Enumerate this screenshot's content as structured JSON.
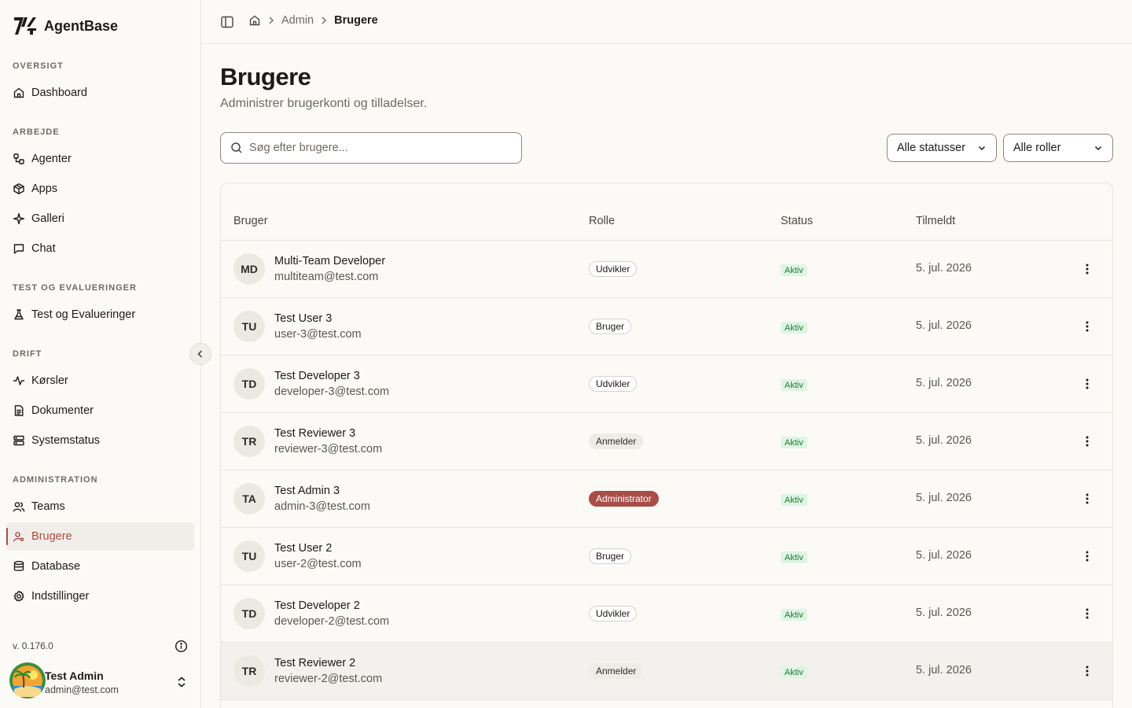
{
  "brand": {
    "name": "AgentBase"
  },
  "sidebar": {
    "sections": [
      {
        "label": "OVERSIGT",
        "items": [
          {
            "label": "Dashboard",
            "icon": "home-icon"
          }
        ]
      },
      {
        "label": "ARBEJDE",
        "items": [
          {
            "label": "Agenter",
            "icon": "workflow-icon"
          },
          {
            "label": "Apps",
            "icon": "package-icon"
          },
          {
            "label": "Galleri",
            "icon": "sparkles-icon"
          },
          {
            "label": "Chat",
            "icon": "message-square-icon"
          }
        ]
      },
      {
        "label": "TEST OG EVALUERINGER",
        "items": [
          {
            "label": "Test og Evalueringer",
            "icon": "flask-icon"
          }
        ]
      },
      {
        "label": "DRIFT",
        "items": [
          {
            "label": "Kørsler",
            "icon": "activity-icon"
          },
          {
            "label": "Dokumenter",
            "icon": "file-text-icon"
          },
          {
            "label": "Systemstatus",
            "icon": "server-icon"
          }
        ]
      },
      {
        "label": "ADMINISTRATION",
        "items": [
          {
            "label": "Teams",
            "icon": "users-icon"
          },
          {
            "label": "Brugere",
            "icon": "user-cog-icon",
            "active": true
          },
          {
            "label": "Database",
            "icon": "database-icon"
          },
          {
            "label": "Indstillinger",
            "icon": "settings-icon"
          }
        ]
      }
    ],
    "version": "v. 0.176.0",
    "user": {
      "name": "Test Admin",
      "email": "admin@test.com"
    }
  },
  "topbar": {
    "breadcrumb": {
      "parent": "Admin",
      "current": "Brugere"
    }
  },
  "page": {
    "title": "Brugere",
    "subtitle": "Administrer brugerkonti og tilladelser.",
    "search_placeholder": "Søg efter brugere...",
    "status_filter": "Alle statusser",
    "role_filter": "Alle roller"
  },
  "table": {
    "columns": {
      "user": "Bruger",
      "role": "Rolle",
      "status": "Status",
      "joined": "Tilmeldt"
    },
    "rows": [
      {
        "initials": "MD",
        "name": "Multi-Team Developer",
        "email": "multiteam@test.com",
        "role": "Udvikler",
        "role_style": "outline",
        "status": "Aktiv",
        "joined": "5. jul. 2026"
      },
      {
        "initials": "TU",
        "name": "Test User 3",
        "email": "user-3@test.com",
        "role": "Bruger",
        "role_style": "outline",
        "status": "Aktiv",
        "joined": "5. jul. 2026"
      },
      {
        "initials": "TD",
        "name": "Test Developer 3",
        "email": "developer-3@test.com",
        "role": "Udvikler",
        "role_style": "outline",
        "status": "Aktiv",
        "joined": "5. jul. 2026"
      },
      {
        "initials": "TR",
        "name": "Test Reviewer 3",
        "email": "reviewer-3@test.com",
        "role": "Anmelder",
        "role_style": "muted",
        "status": "Aktiv",
        "joined": "5. jul. 2026"
      },
      {
        "initials": "TA",
        "name": "Test Admin 3",
        "email": "admin-3@test.com",
        "role": "Administrator",
        "role_style": "admin",
        "status": "Aktiv",
        "joined": "5. jul. 2026"
      },
      {
        "initials": "TU",
        "name": "Test User 2",
        "email": "user-2@test.com",
        "role": "Bruger",
        "role_style": "outline",
        "status": "Aktiv",
        "joined": "5. jul. 2026"
      },
      {
        "initials": "TD",
        "name": "Test Developer 2",
        "email": "developer-2@test.com",
        "role": "Udvikler",
        "role_style": "outline",
        "status": "Aktiv",
        "joined": "5. jul. 2026"
      },
      {
        "initials": "TR",
        "name": "Test Reviewer 2",
        "email": "reviewer-2@test.com",
        "role": "Anmelder",
        "role_style": "muted",
        "status": "Aktiv",
        "joined": "5. jul. 2026",
        "hover": true
      }
    ]
  },
  "colors": {
    "accent": "#b04a3e",
    "admin_badge": "#a94d47",
    "status_bg": "#dff5e3",
    "status_text": "#1f7a35"
  }
}
